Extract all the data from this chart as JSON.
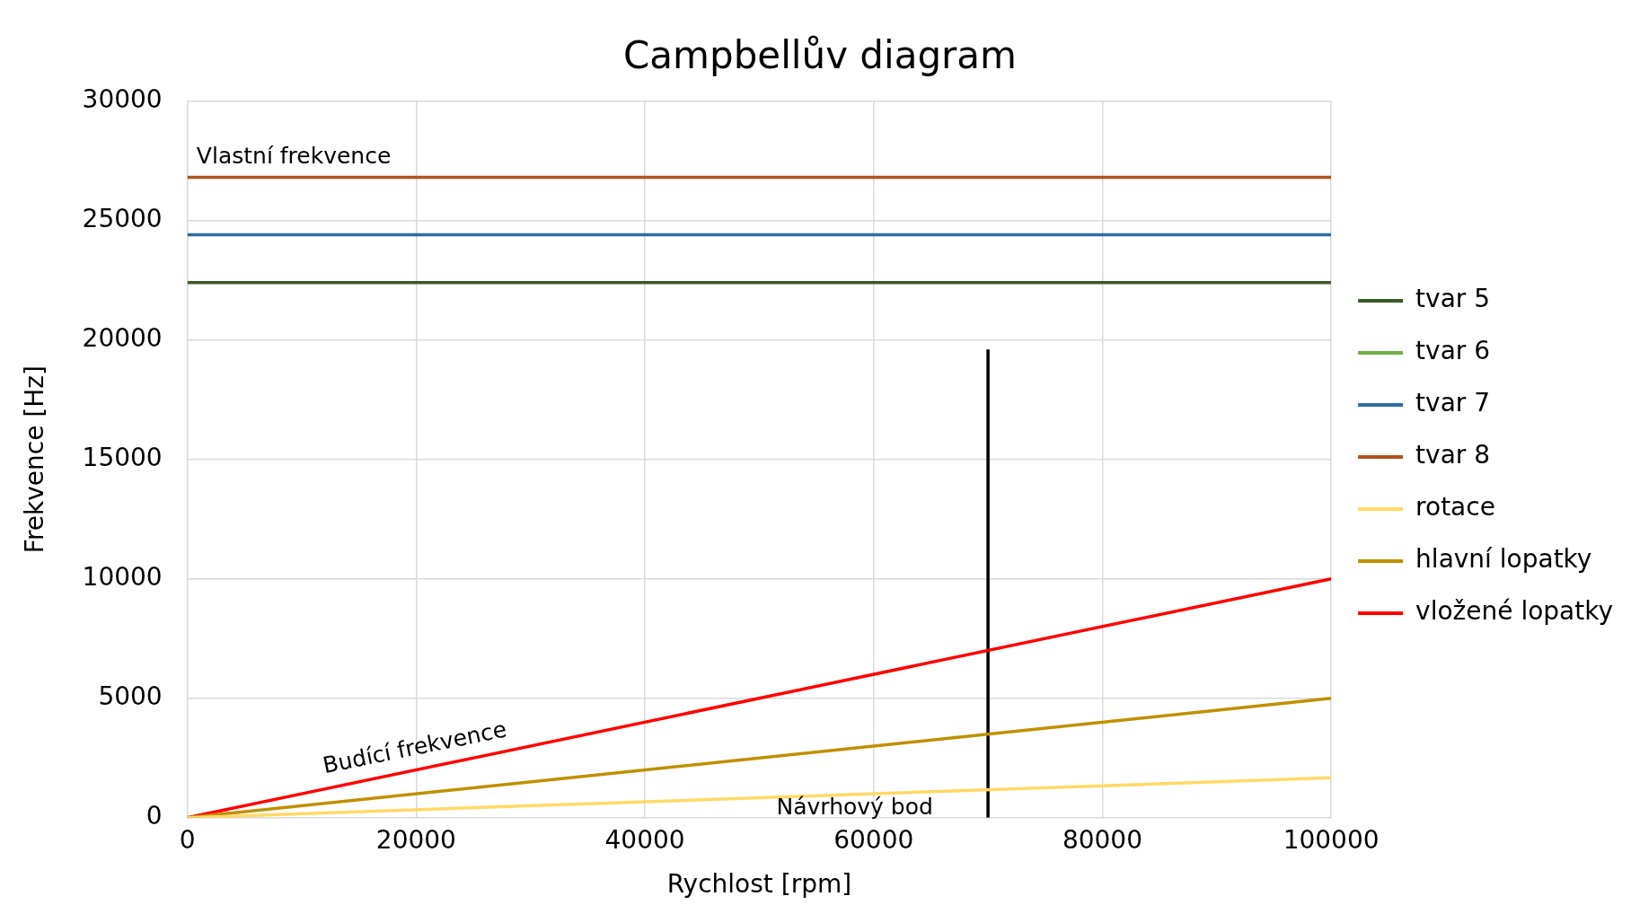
{
  "chart_data": {
    "type": "line",
    "title": "Campbellův diagram",
    "xlabel": "Rychlost [rpm]",
    "ylabel": "Frekvence [Hz]",
    "xlim": [
      0,
      100000
    ],
    "xticks": [
      0,
      20000,
      40000,
      60000,
      80000,
      100000
    ],
    "ylim": [
      0,
      30000
    ],
    "yticks": [
      0,
      5000,
      10000,
      15000,
      20000,
      25000,
      30000
    ],
    "grid": true,
    "legend": "right",
    "marker": "none",
    "line_style": "solid",
    "series": [
      {
        "name": "tvar 5",
        "color": "#3a5a27",
        "x": [
          0,
          100000
        ],
        "values": [
          22400,
          22400
        ]
      },
      {
        "name": "tvar 6",
        "color": "#70ad47"
      },
      {
        "name": "tvar 7",
        "color": "#2e6da4",
        "x": [
          0,
          100000
        ],
        "values": [
          24400,
          24400
        ]
      },
      {
        "name": "tvar 8",
        "color": "#b0521e",
        "x": [
          0,
          100000
        ],
        "values": [
          26800,
          26800
        ]
      },
      {
        "name": "rotace",
        "color": "#ffd966",
        "x": [
          0,
          100000
        ],
        "values": [
          0,
          1670
        ]
      },
      {
        "name": "hlavní lopatky",
        "color": "#bf9000",
        "x": [
          0,
          100000
        ],
        "values": [
          0,
          5000
        ]
      },
      {
        "name": "vložené lopatky",
        "color": "#ff0000",
        "x": [
          0,
          100000
        ],
        "values": [
          0,
          10000
        ]
      },
      {
        "color": "#000000",
        "x": [
          70000,
          70000
        ],
        "values": [
          0,
          19600
        ]
      }
    ],
    "annotations": [
      "Vlastní frekvence",
      "Budící frekvence",
      "Návrhový bod"
    ]
  }
}
